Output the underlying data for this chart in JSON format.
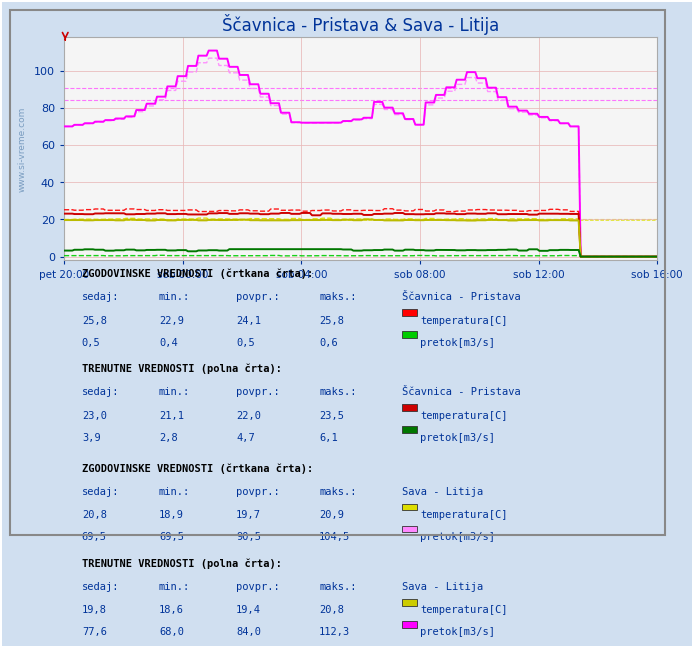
{
  "title": "Ščavnica - Pristava & Sava - Litija",
  "bg_color": "#d0dff0",
  "plot_bg": "#f5f5f5",
  "grid_color": "#e8b8b8",
  "text_color": "#003399",
  "ylim": [
    -2,
    118
  ],
  "yticks": [
    0,
    20,
    40,
    60,
    80,
    100
  ],
  "x_labels": [
    "pet 20:00",
    "sob 00:00",
    "sob 04:00",
    "sob 08:00",
    "sob 12:00",
    "sob 16:00"
  ],
  "n_points": 288,
  "title_fontsize": 12,
  "tc": "#003399",
  "hline_90": 90.5,
  "hline_84": 84.0,
  "hline_20": 20.3,
  "hline_19_5": 19.7
}
